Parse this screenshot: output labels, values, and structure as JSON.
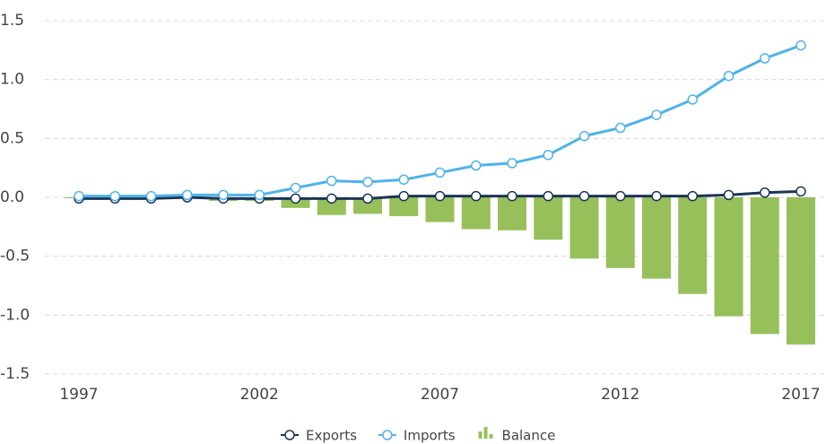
{
  "chart_data": {
    "type": "line",
    "x": [
      1997,
      1998,
      1999,
      2000,
      2001,
      2002,
      2003,
      2004,
      2005,
      2006,
      2007,
      2008,
      2009,
      2010,
      2011,
      2012,
      2013,
      2014,
      2015,
      2016,
      2017
    ],
    "xlim": [
      1997,
      2017
    ],
    "xticks": [
      1997,
      2002,
      2007,
      2012,
      2017
    ],
    "ylim": [
      -1.5,
      1.5
    ],
    "yticks": [
      -1.5,
      {
        "value": -1.0,
        "label": "-1.0"
      },
      -0.5,
      {
        "value": 0,
        "label": "0.0"
      },
      0.5,
      {
        "value": 1.0,
        "label": "1.0"
      },
      1.5
    ],
    "grid": true,
    "legend": "bottom",
    "series": [
      {
        "name": "Exports",
        "type": "line",
        "color": "#1c3557",
        "values": [
          -0.01,
          -0.01,
          -0.01,
          0.0,
          -0.01,
          -0.01,
          -0.01,
          -0.01,
          -0.01,
          0.01,
          0.01,
          0.01,
          0.01,
          0.01,
          0.01,
          0.01,
          0.01,
          0.01,
          0.02,
          0.04,
          0.05
        ]
      },
      {
        "name": "Imports",
        "type": "line",
        "color": "#4fb3e8",
        "values": [
          0.01,
          0.01,
          0.01,
          0.02,
          0.02,
          0.02,
          0.08,
          0.14,
          0.13,
          0.15,
          0.21,
          0.27,
          0.29,
          0.36,
          0.52,
          0.59,
          0.7,
          0.83,
          1.03,
          1.18,
          1.29
        ]
      },
      {
        "name": "Balance",
        "type": "bar",
        "color": "#97c05a",
        "values": [
          -0.005,
          -0.005,
          -0.005,
          -0.01,
          -0.03,
          -0.03,
          -0.09,
          -0.15,
          -0.14,
          -0.16,
          -0.21,
          -0.27,
          -0.28,
          -0.36,
          -0.52,
          -0.6,
          -0.69,
          -0.82,
          -1.01,
          -1.16,
          -1.25
        ]
      }
    ]
  }
}
